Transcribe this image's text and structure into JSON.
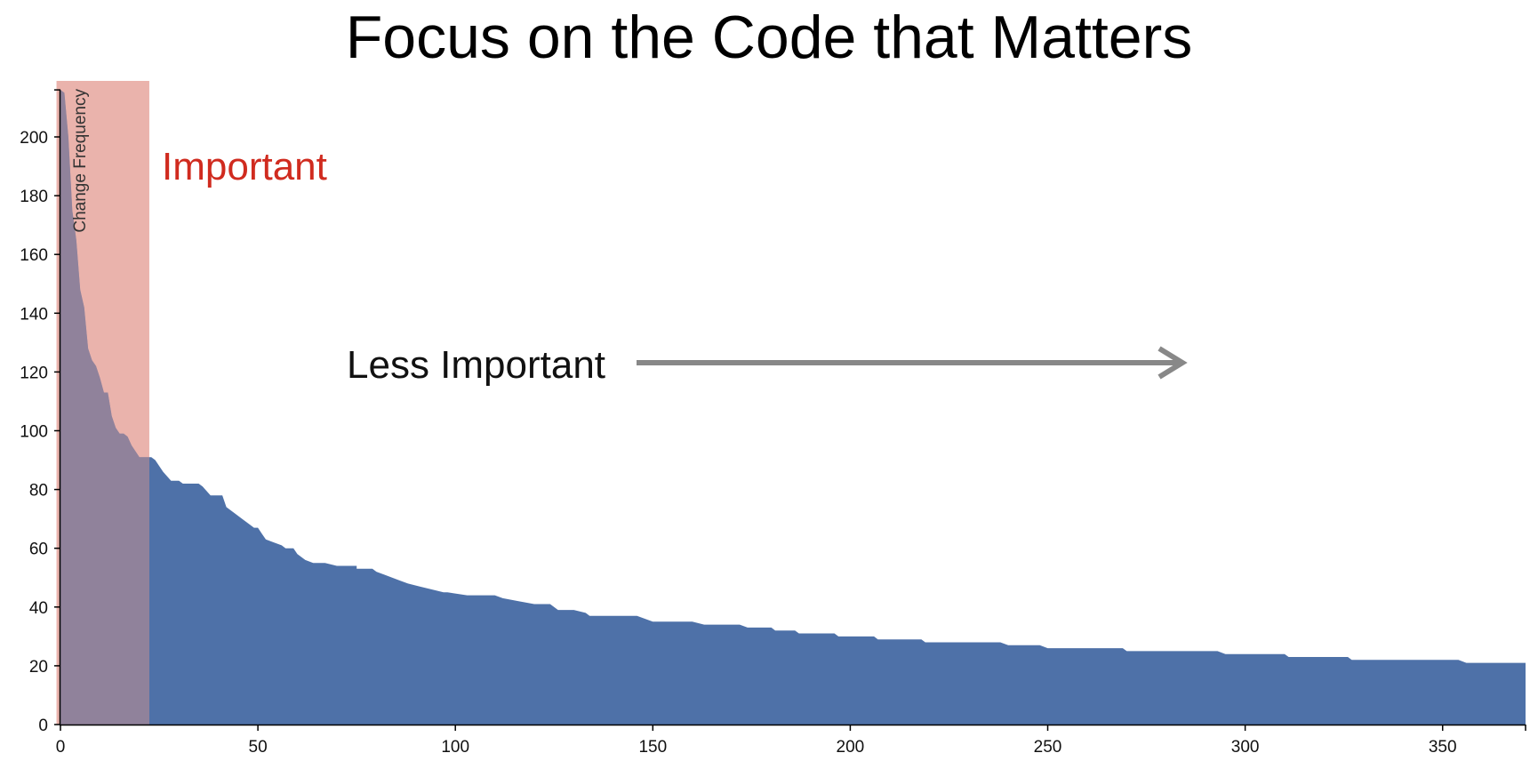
{
  "title": "Focus on the Code that Matters",
  "chart_data": {
    "type": "area",
    "title": "Focus on the Code that Matters",
    "xlabel": "",
    "ylabel": "Change Frequency",
    "xlim": [
      0,
      371
    ],
    "ylim": [
      0,
      216
    ],
    "x_ticks": [
      0,
      50,
      100,
      150,
      200,
      250,
      300,
      350
    ],
    "y_ticks": [
      0,
      20,
      40,
      60,
      80,
      100,
      120,
      140,
      160,
      180,
      200
    ],
    "grid": false,
    "colors": {
      "area": "#4e71a8",
      "highlight": "#e2968c",
      "important_text": "#d02b1f",
      "arrow": "#888888"
    },
    "highlight_region": {
      "x_from": -1,
      "x_to": 22.5,
      "label": "Important"
    },
    "annotations": [
      {
        "text": "Important"
      },
      {
        "text": "Less Important",
        "arrow": true
      }
    ],
    "series": [
      {
        "points": [
          [
            0,
            216
          ],
          [
            1,
            215
          ],
          [
            2,
            200
          ],
          [
            3,
            175
          ],
          [
            4,
            165
          ],
          [
            5,
            148
          ],
          [
            6,
            142
          ],
          [
            7,
            128
          ],
          [
            8,
            124
          ],
          [
            9,
            122
          ],
          [
            10,
            118
          ],
          [
            11,
            113
          ],
          [
            12,
            113
          ],
          [
            13,
            105
          ],
          [
            14,
            101
          ],
          [
            15,
            99
          ],
          [
            16,
            99
          ],
          [
            17,
            98
          ],
          [
            18,
            95
          ],
          [
            19,
            93
          ],
          [
            20,
            91
          ],
          [
            22,
            91
          ],
          [
            23,
            91
          ],
          [
            24,
            90
          ],
          [
            26,
            86
          ],
          [
            28,
            83
          ],
          [
            30,
            83
          ],
          [
            31,
            82
          ],
          [
            35,
            82
          ],
          [
            36,
            81
          ],
          [
            38,
            78
          ],
          [
            41,
            78
          ],
          [
            42,
            74
          ],
          [
            44,
            72
          ],
          [
            46,
            70
          ],
          [
            48,
            68
          ],
          [
            49,
            67
          ],
          [
            50,
            67
          ],
          [
            51,
            65
          ],
          [
            52,
            63
          ],
          [
            54,
            62
          ],
          [
            56,
            61
          ],
          [
            57,
            60
          ],
          [
            59,
            60
          ],
          [
            60,
            58
          ],
          [
            62,
            56
          ],
          [
            64,
            55
          ],
          [
            67,
            55
          ],
          [
            70,
            54
          ],
          [
            75,
            54
          ],
          [
            75,
            53
          ],
          [
            79,
            53
          ],
          [
            80,
            52
          ],
          [
            82,
            51
          ],
          [
            84,
            50
          ],
          [
            86,
            49
          ],
          [
            88,
            48
          ],
          [
            91,
            47
          ],
          [
            94,
            46
          ],
          [
            97,
            45
          ],
          [
            98,
            45
          ],
          [
            103,
            44
          ],
          [
            110,
            44
          ],
          [
            112,
            43
          ],
          [
            116,
            42
          ],
          [
            120,
            41
          ],
          [
            124,
            41
          ],
          [
            126,
            39
          ],
          [
            130,
            39
          ],
          [
            133,
            38
          ],
          [
            134,
            37
          ],
          [
            146,
            37
          ],
          [
            148,
            36
          ],
          [
            150,
            35
          ],
          [
            160,
            35
          ],
          [
            163,
            34
          ],
          [
            172,
            34
          ],
          [
            174,
            33
          ],
          [
            180,
            33
          ],
          [
            181,
            32
          ],
          [
            186,
            32
          ],
          [
            187,
            31
          ],
          [
            196,
            31
          ],
          [
            197,
            30
          ],
          [
            206,
            30
          ],
          [
            207,
            29
          ],
          [
            218,
            29
          ],
          [
            219,
            28
          ],
          [
            238,
            28
          ],
          [
            240,
            27
          ],
          [
            248,
            27
          ],
          [
            250,
            26
          ],
          [
            269,
            26
          ],
          [
            270,
            25
          ],
          [
            293,
            25
          ],
          [
            295,
            24
          ],
          [
            310,
            24
          ],
          [
            311,
            23
          ],
          [
            326,
            23
          ],
          [
            327,
            22
          ],
          [
            354,
            22
          ],
          [
            356,
            21
          ],
          [
            371,
            21
          ]
        ]
      }
    ]
  }
}
